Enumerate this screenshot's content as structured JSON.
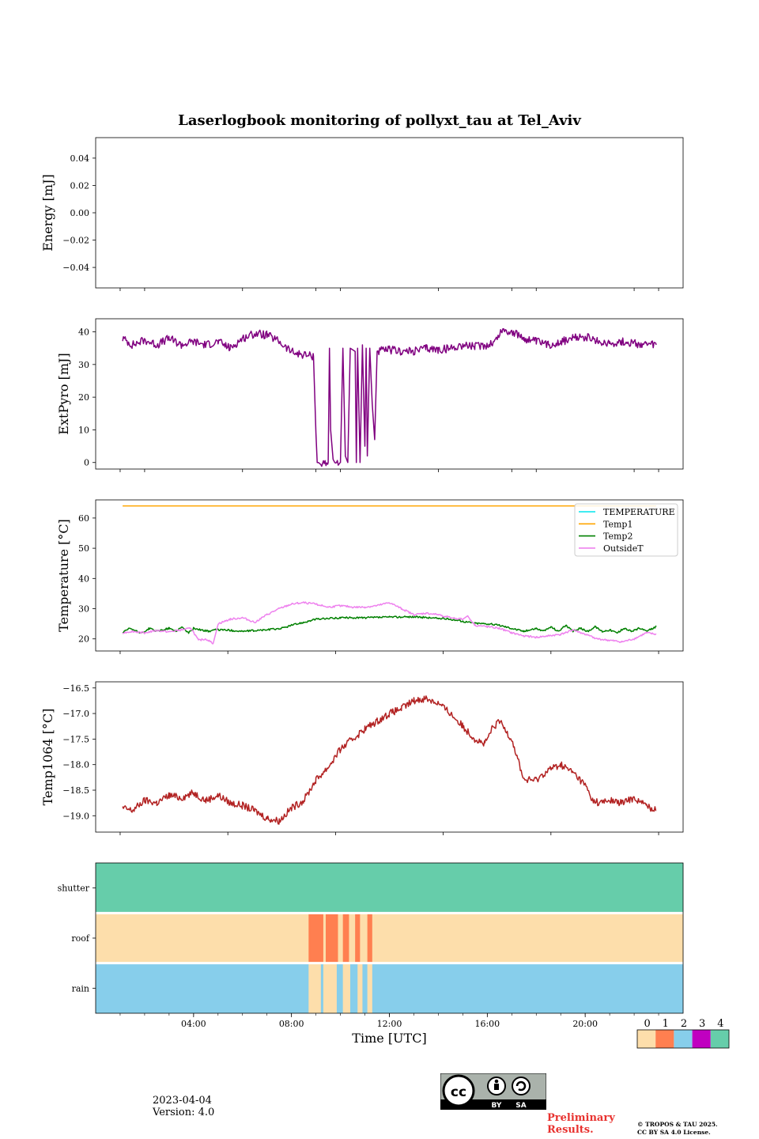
{
  "figure": {
    "title": "Laserlogbook monitoring of pollyxt_tau at Tel_Aviv",
    "date": "2023-04-04",
    "version": "Version: 4.0",
    "preliminary": "Preliminary Results.",
    "copyright_line1": "© TROPOS & TAU 2025.",
    "copyright_line2": "CC BY SA 4.0 License.",
    "license_labels": [
      "cc",
      "BY",
      "SA"
    ]
  },
  "colors": {
    "extpyro": "#800080",
    "temp1": "#ffa500",
    "temperature": "#00e5ee",
    "temp2": "#008000",
    "outsideT": "#ee82ee",
    "temp1064": "#b22222",
    "status": [
      "#fddeab",
      "#ff7f50",
      "#87ceeb",
      "#c000c0",
      "#66cdaa"
    ],
    "preliminary": "#e8322f"
  },
  "chart_data": [
    {
      "type": "line",
      "name": "energy",
      "ylabel": "Energy [mJ]",
      "ylim": [
        -0.055,
        0.055
      ],
      "yticks": [
        0.04,
        0.02,
        0.0,
        -0.02,
        -0.04
      ],
      "ytick_labels": [
        "0.04",
        "0.02",
        "0.00",
        "−0.02",
        "−0.04"
      ],
      "series": []
    },
    {
      "type": "line",
      "name": "extpyro",
      "ylabel": "ExtPyro [mJ]",
      "ylim": [
        -2,
        44
      ],
      "yticks": [
        40,
        30,
        20,
        10,
        0
      ],
      "ytick_labels": [
        "40",
        "30",
        "20",
        "10",
        "0"
      ],
      "series": [
        {
          "color": "#800080",
          "x": [
            1.1,
            1.5,
            2.0,
            2.5,
            3.0,
            3.5,
            4.0,
            4.5,
            5.0,
            5.5,
            6.0,
            6.5,
            7.0,
            7.5,
            7.8,
            8.1,
            8.5,
            8.9,
            9.0,
            9.05,
            9.1,
            9.2,
            9.5,
            9.55,
            9.6,
            9.7,
            10.0,
            10.1,
            10.2,
            10.3,
            10.4,
            10.6,
            10.65,
            10.7,
            10.8,
            10.9,
            11.0,
            11.05,
            11.1,
            11.2,
            11.3,
            11.4,
            11.5,
            12.0,
            12.5,
            13.0,
            13.5,
            14.0,
            14.5,
            15.0,
            15.5,
            16.0,
            16.3,
            16.6,
            17.0,
            17.5,
            18.0,
            18.5,
            19.0,
            19.5,
            20.0,
            20.5,
            21.0,
            21.5,
            22.0,
            22.5,
            22.9
          ],
          "y": [
            38,
            36,
            37.5,
            36,
            38,
            36,
            37,
            36,
            37,
            35,
            38,
            39.5,
            39,
            37,
            35,
            33.5,
            33,
            32.5,
            9,
            0,
            0,
            0,
            0,
            35,
            10,
            0,
            0,
            35,
            2,
            0,
            35,
            34,
            0,
            35,
            0,
            36,
            5,
            35,
            2,
            35,
            18,
            7,
            34,
            34.5,
            34,
            34,
            35,
            34.5,
            35,
            36,
            35.5,
            36,
            37,
            40.5,
            40,
            38,
            37,
            36,
            37,
            38,
            38.5,
            37,
            36.5,
            37,
            36.5,
            36,
            36
          ]
        }
      ]
    },
    {
      "type": "line",
      "name": "temperature",
      "ylabel": "Temperature [°C]",
      "ylim": [
        16,
        66
      ],
      "yticks": [
        60,
        50,
        40,
        30,
        20
      ],
      "ytick_labels": [
        "60",
        "50",
        "40",
        "30",
        "20"
      ],
      "legend_position": "upper right",
      "series": [
        {
          "name": "TEMPERATURE",
          "color": "#00e5ee",
          "x": [],
          "y": []
        },
        {
          "name": "Temp1",
          "color": "#ffa500",
          "x": [
            1.1,
            22.9
          ],
          "y": [
            64,
            64
          ]
        },
        {
          "name": "Temp2",
          "color": "#008000",
          "x": [
            1.1,
            1.4,
            1.8,
            2.0,
            2.2,
            2.5,
            3.0,
            3.3,
            3.5,
            3.8,
            4.0,
            4.3,
            4.6,
            4.9,
            5.2,
            6.0,
            7.0,
            7.6,
            7.8,
            8.0,
            8.5,
            9.0,
            10.0,
            11.0,
            12.0,
            13.0,
            14.0,
            14.5,
            15.0,
            15.5,
            16.0,
            16.5,
            17.0,
            17.5,
            18.0,
            18.3,
            18.6,
            18.9,
            19.2,
            19.5,
            19.8,
            20.1,
            20.4,
            20.7,
            21.0,
            21.3,
            21.6,
            21.9,
            22.2,
            22.5,
            22.9
          ],
          "y": [
            22,
            23.5,
            22,
            22.5,
            23.5,
            22.5,
            23.5,
            22.5,
            24,
            22,
            23.5,
            23,
            22.5,
            23,
            23,
            22.5,
            23,
            23.5,
            24,
            24.5,
            25.5,
            26.5,
            27,
            27,
            27.2,
            27.3,
            26.8,
            26.5,
            25.8,
            25.2,
            25,
            24.5,
            23.5,
            22.5,
            23.5,
            22.5,
            24,
            22.5,
            24.5,
            22.5,
            23.5,
            22.5,
            24,
            22.5,
            23,
            22,
            23.5,
            22.5,
            23.5,
            22.5,
            24
          ]
        },
        {
          "name": "OutsideT",
          "color": "#ee82ee",
          "x": [
            1.1,
            1.5,
            2.0,
            2.5,
            3.0,
            3.5,
            3.9,
            4.2,
            4.5,
            4.8,
            5.0,
            5.5,
            6.0,
            6.5,
            7.0,
            7.5,
            8.0,
            8.5,
            9.0,
            9.5,
            10.0,
            10.5,
            11.0,
            11.5,
            12.0,
            12.5,
            13.0,
            13.5,
            14.0,
            14.5,
            15.0,
            15.2,
            15.5,
            16.0,
            16.5,
            17.0,
            17.5,
            18.0,
            18.5,
            19.0,
            19.5,
            20.0,
            20.5,
            21.0,
            21.5,
            22.0,
            22.5,
            22.9
          ],
          "y": [
            22,
            22.5,
            22,
            22.8,
            22.3,
            23,
            23.5,
            19.5,
            20,
            18.5,
            25,
            26.5,
            27,
            25.5,
            28,
            30,
            31.5,
            32,
            31.5,
            30.5,
            31,
            30.5,
            30.5,
            31,
            32,
            30,
            28,
            28.5,
            28,
            27,
            26.5,
            27.5,
            24.5,
            24,
            23.5,
            22,
            21,
            20.5,
            21,
            21.5,
            23,
            21.5,
            20,
            19.5,
            19,
            20,
            22,
            21.5
          ]
        }
      ]
    },
    {
      "type": "line",
      "name": "temp1064",
      "ylabel": "Temp1064 [°C]",
      "ylim": [
        -19.32,
        -16.38
      ],
      "yticks": [
        -16.5,
        -17.0,
        -17.5,
        -18.0,
        -18.5,
        -19.0
      ],
      "ytick_labels": [
        "−16.5",
        "−17.0",
        "−17.5",
        "−18.0",
        "−18.5",
        "−19.0"
      ],
      "series": [
        {
          "color": "#b22222",
          "x": [
            1.1,
            1.5,
            2.0,
            2.5,
            3.0,
            3.5,
            4.0,
            4.5,
            5.0,
            5.5,
            6.0,
            6.5,
            7.0,
            7.5,
            8.0,
            8.5,
            9.0,
            9.5,
            10.0,
            10.5,
            11.0,
            11.5,
            12.0,
            12.5,
            13.0,
            13.5,
            14.0,
            14.5,
            15.0,
            15.5,
            15.9,
            16.2,
            16.5,
            17.0,
            17.5,
            18.0,
            18.5,
            19.0,
            19.5,
            20.0,
            20.3,
            20.6,
            21.0,
            21.5,
            22.0,
            22.5,
            22.9
          ],
          "y": [
            -18.85,
            -18.9,
            -18.7,
            -18.75,
            -18.6,
            -18.65,
            -18.55,
            -18.7,
            -18.6,
            -18.75,
            -18.8,
            -18.9,
            -19.05,
            -19.1,
            -18.85,
            -18.7,
            -18.3,
            -18.05,
            -17.7,
            -17.5,
            -17.3,
            -17.15,
            -17.0,
            -16.9,
            -16.75,
            -16.7,
            -16.8,
            -17.0,
            -17.25,
            -17.5,
            -17.6,
            -17.3,
            -17.15,
            -17.5,
            -18.3,
            -18.3,
            -18.1,
            -18.0,
            -18.15,
            -18.4,
            -18.7,
            -18.75,
            -18.7,
            -18.75,
            -18.65,
            -18.8,
            -18.9
          ]
        }
      ]
    },
    {
      "type": "heatmap",
      "name": "status",
      "rows": [
        "shutter",
        "roof",
        "rain"
      ],
      "xlabel": "Time [UTC]",
      "xticks": [
        4,
        8,
        12,
        16,
        20
      ],
      "xtick_labels": [
        "04:00",
        "08:00",
        "12:00",
        "16:00",
        "20:00"
      ],
      "colorbar_labels": [
        "0",
        "1",
        "2",
        "3",
        "4"
      ],
      "segments": {
        "shutter": [
          {
            "start": 0,
            "end": 24,
            "value": 4
          }
        ],
        "roof": [
          {
            "start": 0,
            "end": 8.7,
            "value": 0
          },
          {
            "start": 8.7,
            "end": 9.3,
            "value": 1
          },
          {
            "start": 9.3,
            "end": 9.4,
            "value": 0
          },
          {
            "start": 9.4,
            "end": 9.9,
            "value": 1
          },
          {
            "start": 9.9,
            "end": 10.1,
            "value": 0
          },
          {
            "start": 10.1,
            "end": 10.35,
            "value": 1
          },
          {
            "start": 10.35,
            "end": 10.6,
            "value": 0
          },
          {
            "start": 10.6,
            "end": 10.8,
            "value": 1
          },
          {
            "start": 10.8,
            "end": 11.1,
            "value": 0
          },
          {
            "start": 11.1,
            "end": 11.3,
            "value": 1
          },
          {
            "start": 11.3,
            "end": 24,
            "value": 0
          }
        ],
        "rain": [
          {
            "start": 0,
            "end": 8.7,
            "value": 2
          },
          {
            "start": 8.7,
            "end": 9.2,
            "value": 0
          },
          {
            "start": 9.2,
            "end": 9.3,
            "value": 2
          },
          {
            "start": 9.3,
            "end": 9.85,
            "value": 0
          },
          {
            "start": 9.85,
            "end": 10.1,
            "value": 2
          },
          {
            "start": 10.1,
            "end": 10.4,
            "value": 0
          },
          {
            "start": 10.4,
            "end": 10.7,
            "value": 2
          },
          {
            "start": 10.7,
            "end": 10.9,
            "value": 0
          },
          {
            "start": 10.9,
            "end": 11.1,
            "value": 2
          },
          {
            "start": 11.1,
            "end": 11.3,
            "value": 0
          },
          {
            "start": 11.3,
            "end": 24,
            "value": 2
          }
        ]
      }
    }
  ]
}
